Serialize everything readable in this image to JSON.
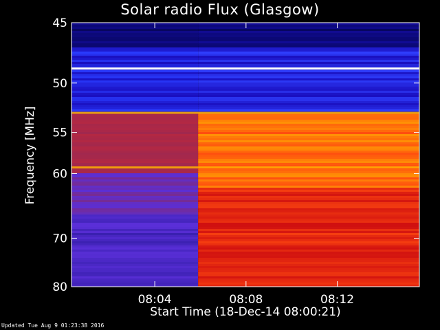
{
  "chart_data": {
    "type": "heatmap",
    "title": "Solar radio Flux (Glasgow)",
    "ylabel": "Frequency [MHz]",
    "xlabel": "Start Time (18-Dec-14 08:00:21)",
    "footer": "Updated Tue Aug  9 01:23:38 2016",
    "x_unit": "minutes after 08:00",
    "xlim": [
      0.35,
      15.6
    ],
    "ylim": [
      80,
      45
    ],
    "x_ticks": [
      {
        "label": "08:04",
        "value": 4
      },
      {
        "label": "08:08",
        "value": 8
      },
      {
        "label": "08:12",
        "value": 12
      }
    ],
    "y_ticks": [
      {
        "label": "45",
        "value": 45
      },
      {
        "label": "50",
        "value": 50
      },
      {
        "label": "55",
        "value": 55
      },
      {
        "label": "60",
        "value": 60
      },
      {
        "label": "70",
        "value": 70
      },
      {
        "label": "80",
        "value": 80
      }
    ],
    "burst_onset": 5.9,
    "persistent_lines_mhz": [
      48.7,
      52.9,
      59.2
    ],
    "colors": {
      "quiet_low": "#1a0fbf",
      "quiet_mid": "#5a2fd8",
      "quiet_band": "#a0284f",
      "active_low": "#d01010",
      "active_mid": "#ff4a10",
      "active_high": "#ffb000",
      "line": "#ffffff"
    }
  }
}
